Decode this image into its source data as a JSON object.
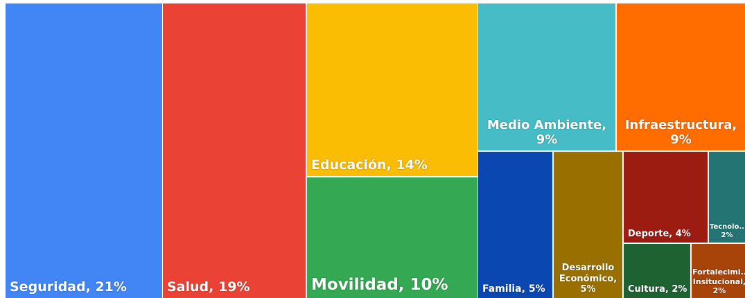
{
  "chart_data": {
    "type": "treemap",
    "categories": [
      "Seguridad,",
      "Salud,",
      "Educación,",
      "Movilidad,",
      "Medio Ambiente,",
      "Infraestructura,",
      "Familia,",
      "Desarrollo Económico,",
      "Deporte,",
      "Tecnolo..",
      "Cultura,",
      "Fortalecimi.. Insitucional,"
    ],
    "values": [
      21,
      19,
      14,
      10,
      9,
      9,
      5,
      5,
      4,
      2,
      2,
      2
    ],
    "value_labels": [
      "21%",
      "19%",
      "14%",
      "10%",
      "9%",
      "9%",
      "5%",
      "5%",
      "4%",
      "2%",
      "2%",
      "2%"
    ],
    "colors": [
      "#4285f4",
      "#ea4335",
      "#fbbc04",
      "#34a853",
      "#46bdc6",
      "#ff6d01",
      "#0b47b0",
      "#997000",
      "#9c1c12",
      "#247474",
      "#1f6232",
      "#a8440a"
    ]
  }
}
